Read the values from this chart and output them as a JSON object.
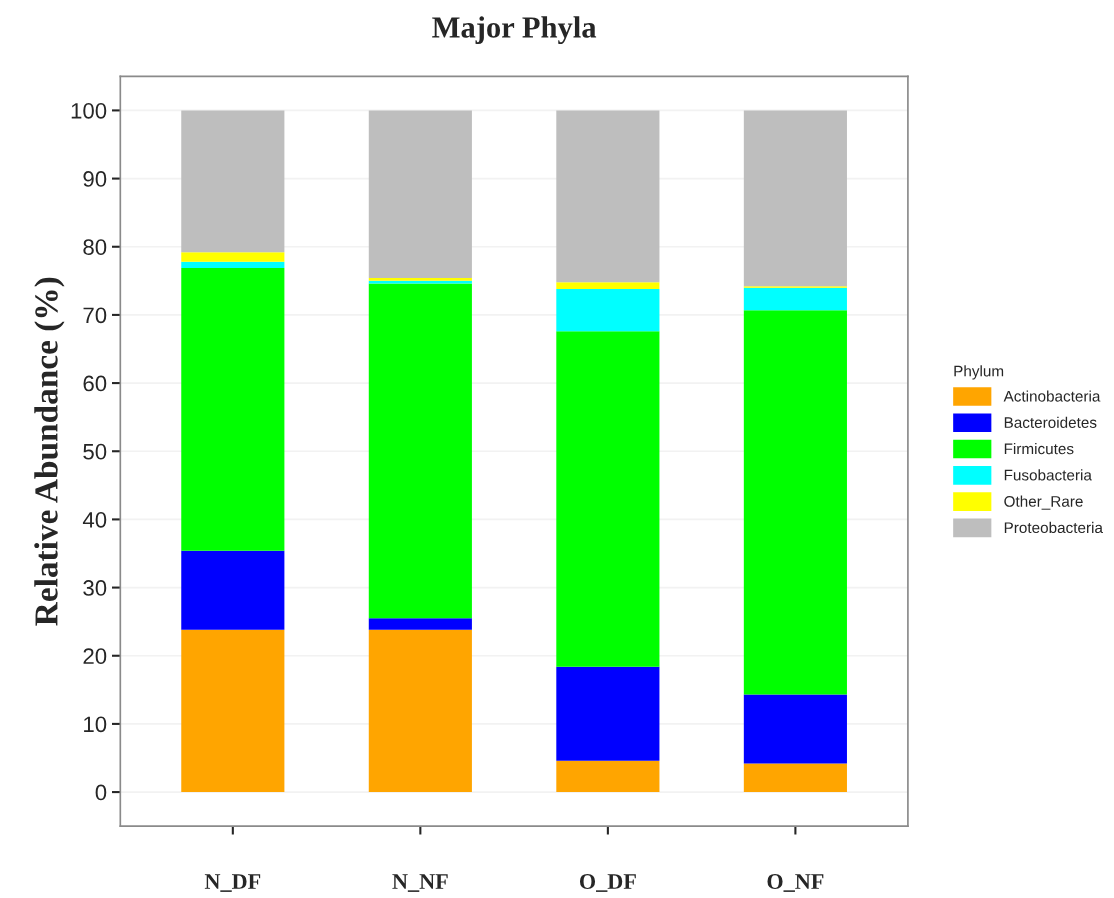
{
  "chart_data": {
    "type": "bar",
    "title": "Major Phyla",
    "ylabel": "Relative Abundance (%)",
    "legend_title": "Phylum",
    "categories": [
      "N_DF",
      "N_NF",
      "O_DF",
      "O_NF"
    ],
    "stacked": true,
    "series": [
      {
        "name": "Actinobacteria",
        "color": "#ffa500",
        "values": [
          23.8,
          23.8,
          4.6,
          4.2
        ]
      },
      {
        "name": "Bacteroidetes",
        "color": "#0000ff",
        "values": [
          11.6,
          1.7,
          13.8,
          10.1
        ]
      },
      {
        "name": "Firmicutes",
        "color": "#00ff00",
        "values": [
          41.5,
          49.1,
          49.2,
          56.4
        ]
      },
      {
        "name": "Fusobacteria",
        "color": "#00ffff",
        "values": [
          0.9,
          0.4,
          6.2,
          3.3
        ]
      },
      {
        "name": "Other_Rare",
        "color": "#ffff00",
        "values": [
          1.4,
          0.4,
          1.0,
          0.2
        ]
      },
      {
        "name": "Proteobacteria",
        "color": "#bebebe",
        "values": [
          20.8,
          24.6,
          25.2,
          25.8
        ]
      }
    ],
    "ylim": [
      -5,
      105
    ],
    "yticks": [
      0,
      10,
      20,
      30,
      40,
      50,
      60,
      70,
      80,
      90,
      100
    ],
    "grid": "y",
    "legend": "right"
  }
}
